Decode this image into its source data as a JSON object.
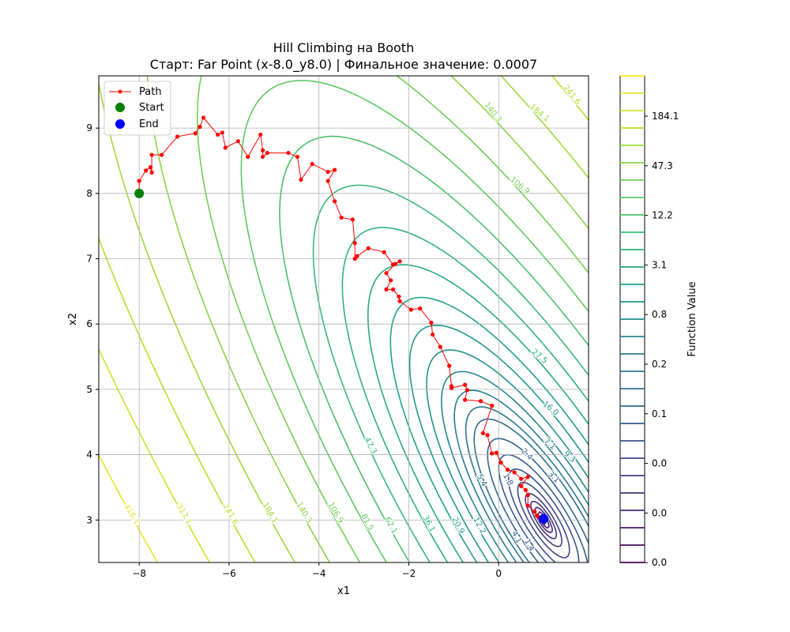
{
  "chart_data": {
    "type": "contour",
    "title": "Hill Climbing на Booth",
    "subtitle": "Старт: Far Point (x-8.0_y8.0) | Финальное значение: 0.0007",
    "xlabel": "x1",
    "ylabel": "x2",
    "xlim": [
      -8.9,
      2.0
    ],
    "ylim": [
      2.35,
      9.8
    ],
    "x_ticks": [
      "−8",
      "−6",
      "−4",
      "−2",
      "0"
    ],
    "x_tick_values": [
      -8,
      -6,
      -4,
      -2,
      0
    ],
    "y_ticks": [
      "3",
      "4",
      "5",
      "6",
      "7",
      "8",
      "9"
    ],
    "y_tick_values": [
      3,
      4,
      5,
      6,
      7,
      8,
      9
    ],
    "grid": true,
    "function": "booth",
    "minimum": [
      1,
      3
    ],
    "contour_levels": [
      0.0,
      0.01,
      0.03,
      0.07,
      0.15,
      0.3,
      0.6,
      1.1,
      1.8,
      2.8,
      4.3,
      5.4,
      7.1,
      9.3,
      12.2,
      16.0,
      20.9,
      27.5,
      36.1,
      47.3,
      62.1,
      81.5,
      106.9,
      140.3,
      184.1,
      241.6,
      317.1,
      416.1,
      546.1
    ],
    "contour_labels": [
      {
        "text": "241.6",
        "level": 241.6
      },
      {
        "text": "184.1",
        "level": 184.1
      },
      {
        "text": "140.3",
        "level": 140.3
      },
      {
        "text": "106.9",
        "level": 106.9
      },
      {
        "text": "27.5",
        "level": 27.5
      },
      {
        "text": "16.0",
        "level": 16.0
      },
      {
        "text": "9.3",
        "level": 9.3
      },
      {
        "text": "7.1",
        "level": 7.1
      },
      {
        "text": "2.4",
        "level": 2.4
      },
      {
        "text": "3.1",
        "level": 3.1
      },
      {
        "text": "416.1",
        "level": 416.1
      },
      {
        "text": "317.1",
        "level": 317.1
      },
      {
        "text": "241.6",
        "level": 241.6
      },
      {
        "text": "184.1",
        "level": 184.1
      },
      {
        "text": "140.3",
        "level": 140.3
      },
      {
        "text": "106.9",
        "level": 106.9
      },
      {
        "text": "81.5",
        "level": 81.5
      },
      {
        "text": "62.1",
        "level": 62.1
      },
      {
        "text": "47.3",
        "level": 47.3
      },
      {
        "text": "36.1",
        "level": 36.1
      },
      {
        "text": "20.9",
        "level": 20.9
      },
      {
        "text": "12.2",
        "level": 12.2
      },
      {
        "text": "5.4",
        "level": 5.4
      },
      {
        "text": "4.1",
        "level": 4.1
      },
      {
        "text": "1.8",
        "level": 1.8
      },
      {
        "text": "1.4",
        "level": 1.4
      }
    ],
    "series": [
      {
        "name": "Path",
        "color": "#ff0000",
        "points": [
          [
            -8.0,
            8.0
          ],
          [
            -8.0,
            8.19
          ],
          [
            -7.85,
            8.35
          ],
          [
            -7.75,
            8.4
          ],
          [
            -7.72,
            8.32
          ],
          [
            -7.72,
            8.59
          ],
          [
            -7.5,
            8.59
          ],
          [
            -7.15,
            8.87
          ],
          [
            -6.75,
            8.92
          ],
          [
            -6.65,
            9.02
          ],
          [
            -6.57,
            9.16
          ],
          [
            -6.25,
            8.9
          ],
          [
            -6.15,
            8.93
          ],
          [
            -6.08,
            8.7
          ],
          [
            -5.8,
            8.8
          ],
          [
            -5.58,
            8.56
          ],
          [
            -5.3,
            8.9
          ],
          [
            -5.25,
            8.66
          ],
          [
            -5.25,
            8.56
          ],
          [
            -5.15,
            8.62
          ],
          [
            -4.68,
            8.62
          ],
          [
            -4.48,
            8.56
          ],
          [
            -4.4,
            8.21
          ],
          [
            -4.15,
            8.45
          ],
          [
            -3.8,
            8.33
          ],
          [
            -3.65,
            8.36
          ],
          [
            -3.8,
            8.19
          ],
          [
            -3.65,
            7.88
          ],
          [
            -3.5,
            7.63
          ],
          [
            -3.25,
            7.6
          ],
          [
            -3.2,
            7.24
          ],
          [
            -3.2,
            7.0
          ],
          [
            -3.15,
            7.04
          ],
          [
            -2.9,
            7.16
          ],
          [
            -2.55,
            7.1
          ],
          [
            -2.35,
            6.91
          ],
          [
            -2.2,
            6.96
          ],
          [
            -2.3,
            6.92
          ],
          [
            -2.5,
            6.78
          ],
          [
            -2.4,
            6.67
          ],
          [
            -2.5,
            6.53
          ],
          [
            -2.35,
            6.53
          ],
          [
            -2.22,
            6.42
          ],
          [
            -2.2,
            6.35
          ],
          [
            -1.95,
            6.22
          ],
          [
            -1.75,
            6.24
          ],
          [
            -1.5,
            6.02
          ],
          [
            -1.47,
            5.84
          ],
          [
            -1.3,
            5.65
          ],
          [
            -1.1,
            5.36
          ],
          [
            -1.05,
            5.05
          ],
          [
            -1.05,
            5.02
          ],
          [
            -0.75,
            5.07
          ],
          [
            -0.7,
            4.99
          ],
          [
            -0.75,
            4.84
          ],
          [
            -0.4,
            4.82
          ],
          [
            -0.15,
            4.75
          ],
          [
            -0.35,
            4.33
          ],
          [
            -0.25,
            4.3
          ],
          [
            -0.15,
            4.02
          ],
          [
            -0.05,
            4.03
          ],
          [
            0.05,
            3.88
          ],
          [
            0.2,
            3.77
          ],
          [
            0.35,
            3.73
          ],
          [
            0.5,
            3.63
          ],
          [
            0.65,
            3.66
          ],
          [
            0.5,
            3.52
          ],
          [
            0.6,
            3.46
          ],
          [
            0.65,
            3.38
          ],
          [
            0.65,
            3.22
          ],
          [
            0.8,
            3.13
          ],
          [
            0.85,
            3.07
          ],
          [
            0.9,
            3.04
          ],
          [
            1.0,
            3.02
          ]
        ]
      },
      {
        "name": "Start",
        "color": "#008000",
        "points": [
          [
            -8.0,
            8.0
          ]
        ]
      },
      {
        "name": "End",
        "color": "#0000ff",
        "points": [
          [
            1.0,
            3.02
          ]
        ]
      }
    ],
    "legend": {
      "position": "upper-left",
      "entries": [
        "Path",
        "Start",
        "End"
      ]
    },
    "colorbar": {
      "label": "Function Value",
      "colormap": "viridis",
      "tick_labels": [
        "184.1",
        "47.3",
        "12.2",
        "3.1",
        "0.8",
        "0.2",
        "0.1",
        "0.0",
        "0.0",
        "0.0"
      ]
    }
  }
}
